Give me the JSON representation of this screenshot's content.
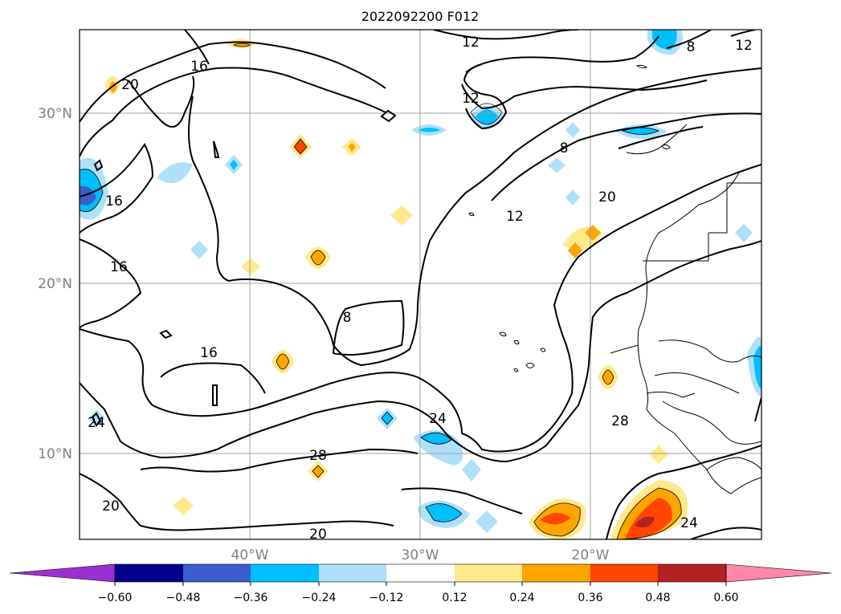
{
  "title": "2022092200 F012",
  "lat_labels": [
    "30°N",
    "20°N",
    "10°N"
  ],
  "lon_labels": [
    "40°W",
    "30°W",
    "20°W"
  ],
  "contour_labels": [
    "16",
    "20",
    "12",
    "8",
    "12",
    "16",
    "12",
    "8",
    "20",
    "16",
    "8",
    "16",
    "24",
    "24",
    "28",
    "28",
    "20",
    "20",
    "24",
    "12"
  ],
  "colorbar": {
    "ticks": [
      "−0.60",
      "−0.48",
      "−0.36",
      "−0.24",
      "−0.12",
      "0.12",
      "0.24",
      "0.36",
      "0.48",
      "0.60"
    ],
    "colors": {
      "under": "#9b30d0",
      "bins": [
        "#00008b",
        "#3a5fcd",
        "#00bfff",
        "#aee0fa",
        "#ffffff",
        "#fee98b",
        "#ffa500",
        "#ff4500",
        "#b22222"
      ],
      "over": "#ff88aa"
    }
  }
}
